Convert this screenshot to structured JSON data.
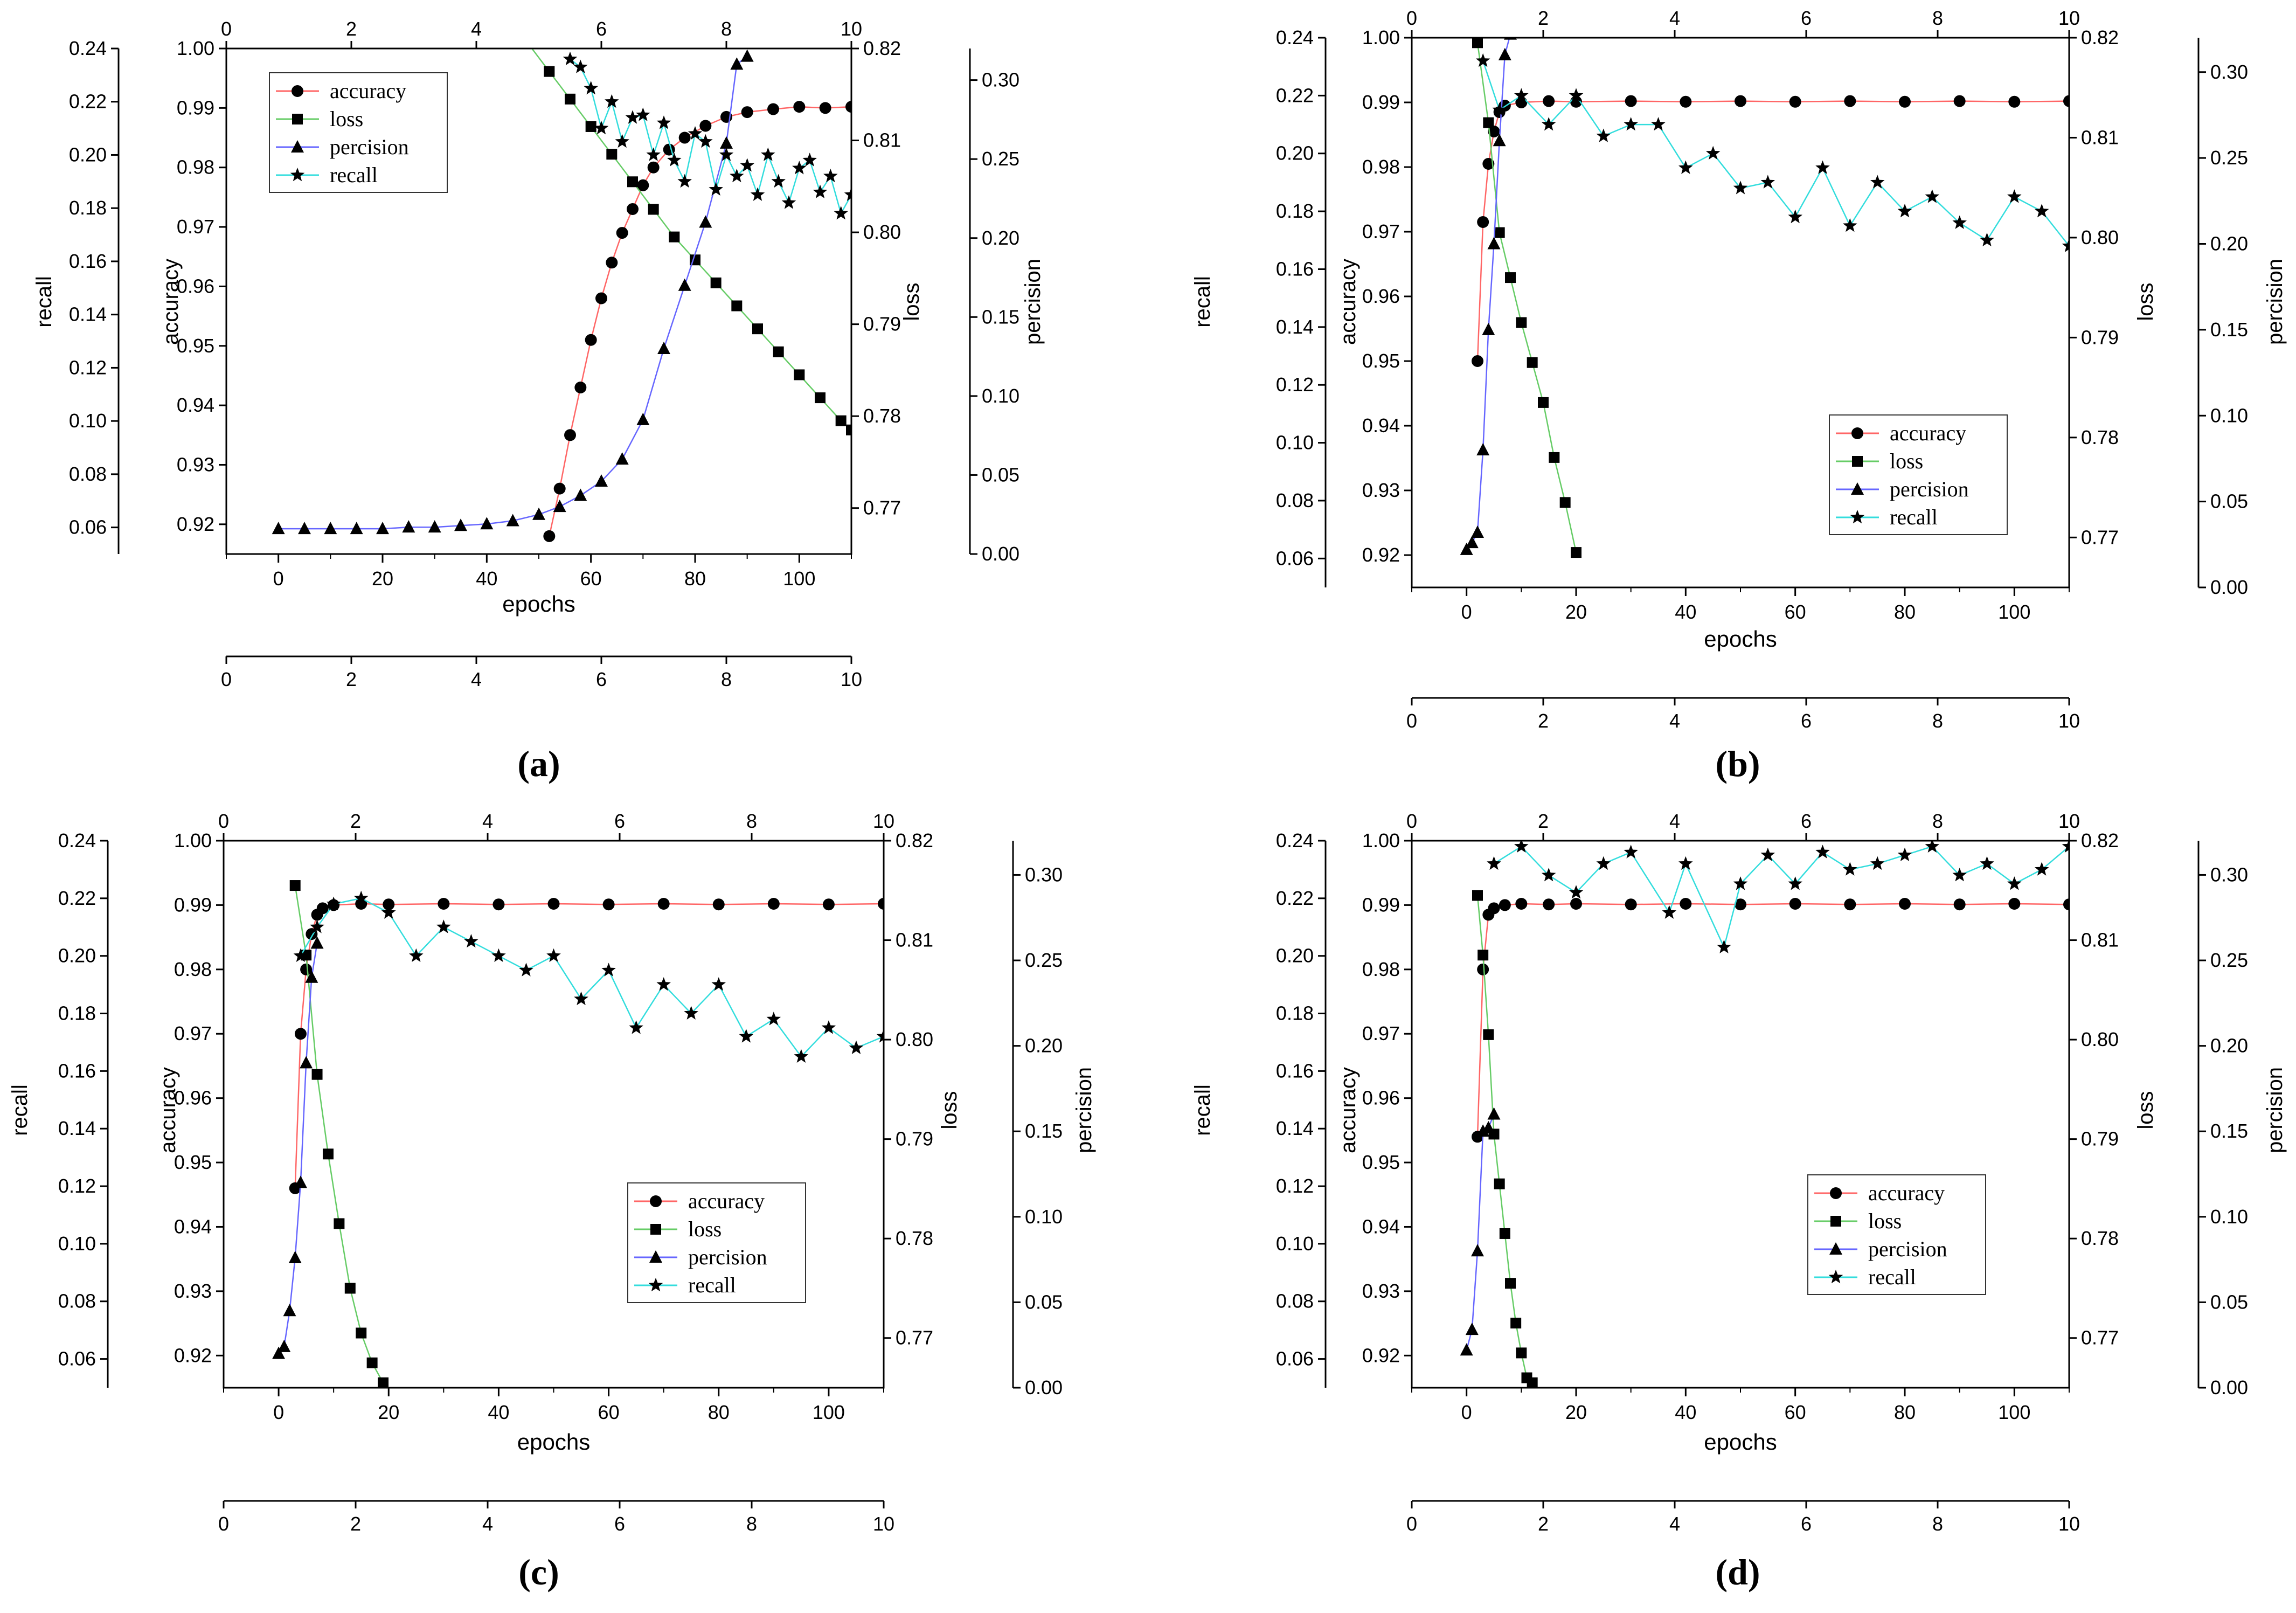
{
  "figure": {
    "panels_order": [
      "a",
      "b",
      "c",
      "d"
    ]
  },
  "colors": {
    "axis": "#000000",
    "marker": "#000000",
    "accuracy_line": "#ff6666",
    "loss_line": "#66cc66",
    "precision_line": "#6666ff",
    "recall_line": "#33dddd"
  },
  "chart_data": [
    {
      "label": "(a)",
      "type": "line",
      "xlabel": "epochs",
      "x_ticks": [
        0,
        20,
        40,
        60,
        80,
        100
      ],
      "xlim": [
        -10,
        110
      ],
      "top_axis_ticks": [
        "0",
        "2",
        "4",
        "6",
        "8",
        "10"
      ],
      "bottom_extra_axis_ticks": [
        "0",
        "2",
        "4",
        "6",
        "8",
        "10"
      ],
      "axes": {
        "accuracy": {
          "label": "accuracy",
          "ylim": [
            0.915,
            1.0
          ],
          "ticks": [
            "0.92",
            "0.93",
            "0.94",
            "0.95",
            "0.96",
            "0.97",
            "0.98",
            "0.99",
            "1.00"
          ]
        },
        "loss": {
          "label": "loss",
          "ylim": [
            0.765,
            0.82
          ],
          "ticks": [
            "0.77",
            "0.78",
            "0.79",
            "0.80",
            "0.81",
            "0.82"
          ]
        },
        "precision": {
          "label": "percision",
          "ylim": [
            0.0,
            0.32
          ],
          "ticks": [
            "0.00",
            "0.05",
            "0.10",
            "0.15",
            "0.20",
            "0.25",
            "0.30"
          ]
        },
        "recall": {
          "label": "recall",
          "ylim": [
            0.05,
            0.24
          ],
          "ticks": [
            "0.06",
            "0.08",
            "0.10",
            "0.12",
            "0.14",
            "0.16",
            "0.18",
            "0.20",
            "0.22",
            "0.24"
          ]
        }
      },
      "legend": {
        "position": "top-left",
        "entries": [
          "accuracy",
          "loss",
          "percision",
          "recall"
        ]
      },
      "series": [
        {
          "name": "accuracy",
          "x": [
            52,
            54,
            56,
            58,
            60,
            62,
            64,
            66,
            68,
            70,
            72,
            75,
            78,
            82,
            86,
            90,
            95,
            100,
            105,
            110
          ],
          "values": [
            0.918,
            0.926,
            0.935,
            0.943,
            0.951,
            0.958,
            0.964,
            0.969,
            0.973,
            0.977,
            0.98,
            0.983,
            0.985,
            0.987,
            0.9885,
            0.9893,
            0.9898,
            0.9902,
            0.99,
            0.9902
          ]
        },
        {
          "name": "loss",
          "x": [
            48,
            52,
            56,
            60,
            64,
            68,
            72,
            76,
            80,
            84,
            88,
            92,
            96,
            100,
            104,
            108,
            110
          ],
          "values": [
            0.8205,
            0.8175,
            0.8145,
            0.8115,
            0.8085,
            0.8055,
            0.8025,
            0.7995,
            0.797,
            0.7945,
            0.792,
            0.7895,
            0.787,
            0.7845,
            0.782,
            0.7795,
            0.7785
          ]
        },
        {
          "name": "percision",
          "x": [
            0,
            5,
            10,
            15,
            20,
            25,
            30,
            35,
            40,
            45,
            50,
            54,
            58,
            62,
            66,
            70,
            74,
            78,
            82,
            86,
            88,
            90
          ],
          "values": [
            0.016,
            0.016,
            0.016,
            0.016,
            0.016,
            0.017,
            0.017,
            0.018,
            0.019,
            0.021,
            0.025,
            0.03,
            0.037,
            0.046,
            0.06,
            0.085,
            0.13,
            0.17,
            0.21,
            0.26,
            0.31,
            0.315
          ]
        },
        {
          "name": "recall",
          "x": [
            56,
            58,
            60,
            62,
            64,
            66,
            68,
            70,
            72,
            74,
            76,
            78,
            80,
            82,
            84,
            86,
            88,
            90,
            92,
            94,
            96,
            98,
            100,
            102,
            104,
            106,
            108,
            110
          ],
          "values": [
            0.236,
            0.233,
            0.225,
            0.21,
            0.22,
            0.205,
            0.214,
            0.215,
            0.2,
            0.212,
            0.198,
            0.19,
            0.208,
            0.205,
            0.187,
            0.2,
            0.192,
            0.196,
            0.185,
            0.2,
            0.19,
            0.182,
            0.195,
            0.198,
            0.186,
            0.192,
            0.178,
            0.185
          ]
        }
      ]
    },
    {
      "label": "(b)",
      "type": "line",
      "xlabel": "epochs",
      "x_ticks": [
        0,
        20,
        40,
        60,
        80,
        100
      ],
      "xlim": [
        -10,
        110
      ],
      "top_axis_ticks": [
        "0",
        "2",
        "4",
        "6",
        "8",
        "10"
      ],
      "bottom_extra_axis_ticks": [
        "0",
        "2",
        "4",
        "6",
        "8",
        "10"
      ],
      "axes": {
        "accuracy": {
          "label": "accuracy",
          "ylim": [
            0.915,
            1.0
          ],
          "ticks": [
            "0.92",
            "0.93",
            "0.94",
            "0.95",
            "0.96",
            "0.97",
            "0.98",
            "0.99",
            "1.00"
          ]
        },
        "loss": {
          "label": "loss",
          "ylim": [
            0.765,
            0.82
          ],
          "ticks": [
            "0.77",
            "0.78",
            "0.79",
            "0.80",
            "0.81",
            "0.82"
          ]
        },
        "precision": {
          "label": "percision",
          "ylim": [
            0.0,
            0.32
          ],
          "ticks": [
            "0.00",
            "0.05",
            "0.10",
            "0.15",
            "0.20",
            "0.25",
            "0.30"
          ]
        },
        "recall": {
          "label": "recall",
          "ylim": [
            0.05,
            0.24
          ],
          "ticks": [
            "0.06",
            "0.08",
            "0.10",
            "0.12",
            "0.14",
            "0.16",
            "0.18",
            "0.20",
            "0.22",
            "0.24"
          ]
        }
      },
      "legend": {
        "position": "lower-right",
        "entries": [
          "accuracy",
          "loss",
          "percision",
          "recall"
        ]
      },
      "series": [
        {
          "name": "accuracy",
          "x": [
            2,
            3,
            4,
            5,
            6,
            7,
            10,
            15,
            20,
            30,
            40,
            50,
            60,
            70,
            80,
            90,
            100,
            110
          ],
          "values": [
            0.95,
            0.9715,
            0.9805,
            0.9855,
            0.9885,
            0.9895,
            0.99,
            0.9902,
            0.9901,
            0.9902,
            0.9901,
            0.9902,
            0.9901,
            0.9902,
            0.9901,
            0.9902,
            0.9901,
            0.9902
          ]
        },
        {
          "name": "loss",
          "x": [
            2,
            4,
            6,
            8,
            10,
            12,
            14,
            16,
            18,
            20
          ],
          "values": [
            0.8195,
            0.8115,
            0.8005,
            0.796,
            0.7915,
            0.7875,
            0.7835,
            0.778,
            0.7735,
            0.7685
          ]
        },
        {
          "name": "percision",
          "x": [
            0,
            1,
            2,
            3,
            4,
            5,
            6,
            7,
            8
          ],
          "values": [
            0.022,
            0.026,
            0.032,
            0.08,
            0.15,
            0.2,
            0.26,
            0.31,
            0.322
          ]
        },
        {
          "name": "recall",
          "x": [
            3,
            6,
            10,
            15,
            20,
            25,
            30,
            35,
            40,
            45,
            50,
            55,
            60,
            65,
            70,
            75,
            80,
            85,
            90,
            95,
            100,
            105,
            110
          ],
          "values": [
            0.232,
            0.215,
            0.22,
            0.21,
            0.22,
            0.206,
            0.21,
            0.21,
            0.195,
            0.2,
            0.188,
            0.19,
            0.178,
            0.195,
            0.175,
            0.19,
            0.18,
            0.185,
            0.176,
            0.17,
            0.185,
            0.18,
            0.168
          ]
        }
      ]
    },
    {
      "label": "(c)",
      "type": "line",
      "xlabel": "epochs",
      "x_ticks": [
        0,
        20,
        40,
        60,
        80,
        100
      ],
      "xlim": [
        -10,
        110
      ],
      "top_axis_ticks": [
        "0",
        "2",
        "4",
        "6",
        "8",
        "10"
      ],
      "bottom_extra_axis_ticks": [
        "0",
        "2",
        "4",
        "6",
        "8",
        "10"
      ],
      "axes": {
        "accuracy": {
          "label": "accuracy",
          "ylim": [
            0.915,
            1.0
          ],
          "ticks": [
            "0.92",
            "0.93",
            "0.94",
            "0.95",
            "0.96",
            "0.97",
            "0.98",
            "0.99",
            "1.00"
          ]
        },
        "loss": {
          "label": "loss",
          "ylim": [
            0.765,
            0.82
          ],
          "ticks": [
            "0.77",
            "0.78",
            "0.79",
            "0.80",
            "0.81",
            "0.82"
          ]
        },
        "precision": {
          "label": "percision",
          "ylim": [
            0.0,
            0.32
          ],
          "ticks": [
            "0.00",
            "0.05",
            "0.10",
            "0.15",
            "0.20",
            "0.25",
            "0.30"
          ]
        },
        "recall": {
          "label": "recall",
          "ylim": [
            0.05,
            0.24
          ],
          "ticks": [
            "0.06",
            "0.08",
            "0.10",
            "0.12",
            "0.14",
            "0.16",
            "0.18",
            "0.20",
            "0.22",
            "0.24"
          ]
        }
      },
      "legend": {
        "position": "lower-right",
        "entries": [
          "accuracy",
          "loss",
          "percision",
          "recall"
        ]
      },
      "series": [
        {
          "name": "accuracy",
          "x": [
            3,
            4,
            5,
            6,
            7,
            8,
            10,
            15,
            20,
            30,
            40,
            50,
            60,
            70,
            80,
            90,
            100,
            110
          ],
          "values": [
            0.946,
            0.97,
            0.98,
            0.9855,
            0.9885,
            0.9895,
            0.99,
            0.9902,
            0.9901,
            0.9902,
            0.9901,
            0.9902,
            0.9901,
            0.9902,
            0.9901,
            0.9902,
            0.9901,
            0.9902
          ]
        },
        {
          "name": "loss",
          "x": [
            3,
            5,
            7,
            9,
            11,
            13,
            15,
            17,
            19
          ],
          "values": [
            0.8155,
            0.8085,
            0.7965,
            0.7885,
            0.7815,
            0.775,
            0.7705,
            0.7675,
            0.7655
          ]
        },
        {
          "name": "percision",
          "x": [
            0,
            1,
            2,
            3,
            4,
            5,
            6,
            7
          ],
          "values": [
            0.02,
            0.024,
            0.045,
            0.076,
            0.12,
            0.19,
            0.24,
            0.26
          ]
        },
        {
          "name": "recall",
          "x": [
            4,
            7,
            10,
            15,
            20,
            25,
            30,
            35,
            40,
            45,
            50,
            55,
            60,
            65,
            70,
            75,
            80,
            85,
            90,
            95,
            100,
            105,
            110
          ],
          "values": [
            0.2,
            0.21,
            0.218,
            0.22,
            0.215,
            0.2,
            0.21,
            0.205,
            0.2,
            0.195,
            0.2,
            0.185,
            0.195,
            0.175,
            0.19,
            0.18,
            0.19,
            0.172,
            0.178,
            0.165,
            0.175,
            0.168,
            0.172
          ]
        }
      ]
    },
    {
      "label": "(d)",
      "type": "line",
      "xlabel": "epochs",
      "x_ticks": [
        0,
        20,
        40,
        60,
        80,
        100
      ],
      "xlim": [
        -10,
        110
      ],
      "top_axis_ticks": [
        "0",
        "2",
        "4",
        "6",
        "8",
        "10"
      ],
      "bottom_extra_axis_ticks": [
        "0",
        "2",
        "4",
        "6",
        "8",
        "10"
      ],
      "axes": {
        "accuracy": {
          "label": "accuracy",
          "ylim": [
            0.915,
            1.0
          ],
          "ticks": [
            "0.92",
            "0.93",
            "0.94",
            "0.95",
            "0.96",
            "0.97",
            "0.98",
            "0.99",
            "1.00"
          ]
        },
        "loss": {
          "label": "loss",
          "ylim": [
            0.765,
            0.82
          ],
          "ticks": [
            "0.77",
            "0.78",
            "0.79",
            "0.80",
            "0.81",
            "0.82"
          ]
        },
        "precision": {
          "label": "percision",
          "ylim": [
            0.0,
            0.32
          ],
          "ticks": [
            "0.00",
            "0.05",
            "0.10",
            "0.15",
            "0.20",
            "0.25",
            "0.30"
          ]
        },
        "recall": {
          "label": "recall",
          "ylim": [
            0.05,
            0.24
          ],
          "ticks": [
            "0.06",
            "0.08",
            "0.10",
            "0.12",
            "0.14",
            "0.16",
            "0.18",
            "0.20",
            "0.22",
            "0.24"
          ]
        }
      },
      "legend": {
        "position": "lower-right",
        "entries": [
          "accuracy",
          "loss",
          "percision",
          "recall"
        ]
      },
      "series": [
        {
          "name": "accuracy",
          "x": [
            2,
            3,
            4,
            5,
            7,
            10,
            15,
            20,
            30,
            40,
            50,
            60,
            70,
            80,
            90,
            100,
            110
          ],
          "values": [
            0.954,
            0.98,
            0.9885,
            0.9895,
            0.99,
            0.9902,
            0.9901,
            0.9902,
            0.9901,
            0.9902,
            0.9901,
            0.9902,
            0.9901,
            0.9902,
            0.9901,
            0.9902,
            0.9901
          ]
        },
        {
          "name": "loss",
          "x": [
            2,
            3,
            4,
            5,
            6,
            7,
            8,
            9,
            10,
            11,
            12
          ],
          "values": [
            0.8145,
            0.8085,
            0.8005,
            0.7905,
            0.7855,
            0.7805,
            0.7755,
            0.7715,
            0.7685,
            0.766,
            0.7655
          ]
        },
        {
          "name": "percision",
          "x": [
            0,
            1,
            2,
            3,
            4,
            5
          ],
          "values": [
            0.022,
            0.034,
            0.08,
            0.15,
            0.152,
            0.16
          ]
        },
        {
          "name": "recall",
          "x": [
            5,
            10,
            15,
            20,
            25,
            30,
            37,
            40,
            47,
            50,
            55,
            60,
            65,
            70,
            75,
            80,
            85,
            90,
            95,
            100,
            105,
            110
          ],
          "values": [
            0.232,
            0.238,
            0.228,
            0.222,
            0.232,
            0.236,
            0.215,
            0.232,
            0.203,
            0.225,
            0.235,
            0.225,
            0.236,
            0.23,
            0.232,
            0.235,
            0.238,
            0.228,
            0.232,
            0.225,
            0.23,
            0.238
          ]
        }
      ]
    }
  ]
}
